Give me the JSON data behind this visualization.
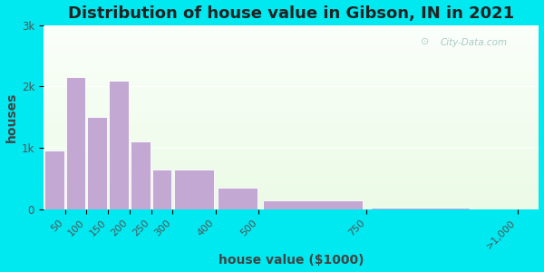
{
  "title": "Distribution of house value in Gibson, IN in 2021",
  "xlabel": "house value ($1000)",
  "ylabel": "houses",
  "bin_edges": [
    0,
    50,
    100,
    150,
    200,
    250,
    300,
    400,
    500,
    750,
    1000,
    1150
  ],
  "bar_values": [
    950,
    2150,
    1500,
    2100,
    1100,
    650,
    650,
    350,
    150,
    30,
    0
  ],
  "xtick_positions": [
    50,
    100,
    150,
    200,
    250,
    300,
    400,
    500,
    750,
    1100
  ],
  "xtick_labels": [
    "50",
    "100",
    "150",
    "200",
    "250",
    "300",
    "400",
    "500",
    "750",
    ">1,000"
  ],
  "bar_color": "#c4a8d4",
  "bar_edgecolor": "#ffffff",
  "yticks": [
    0,
    1000,
    2000,
    3000
  ],
  "ytick_labels": [
    "0",
    "1k",
    "2k",
    "3k"
  ],
  "ylim": [
    0,
    3000
  ],
  "xlim": [
    0,
    1150
  ],
  "background_outer": "#00e8f0",
  "title_fontsize": 13,
  "axis_label_fontsize": 10,
  "watermark_text": "City-Data.com"
}
